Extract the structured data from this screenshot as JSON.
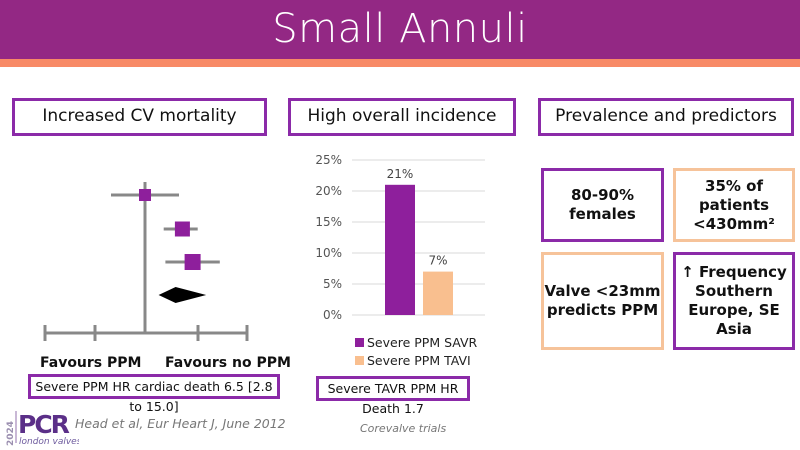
{
  "header": {
    "title": "Small Annuli"
  },
  "colors": {
    "brand_purple": "#932884",
    "accent_orange": "#F88A66",
    "box_purple": "#8B2AA8",
    "peach": "#F6C39A"
  },
  "sections": [
    {
      "title": "Increased CV mortality",
      "forest_plot": {
        "labels": {
          "left": "Favours PPM",
          "right": "Favours no PPM"
        },
        "studies": [
          {
            "estimate": 0,
            "ci": [
              -1.0,
              1.0
            ]
          },
          {
            "estimate": 1.1,
            "ci": [
              0.55,
              1.55
            ]
          },
          {
            "estimate": 1.4,
            "ci": [
              0.6,
              2.2
            ]
          }
        ],
        "pooled": {
          "estimate": 0.9,
          "ci": [
            0.4,
            1.8
          ]
        }
      },
      "note": "Severe PPM HR cardiac death 6.5 [2.8 to 15.0]",
      "reference": "Head et al, Eur Heart J, June 2012"
    },
    {
      "title": "High overall incidence",
      "note": "Severe TAVR PPM HR Death 1.7",
      "reference": "Corevalve trials"
    },
    {
      "title": "Prevalence and predictors",
      "cards": [
        {
          "lines": [
            "80-90%",
            "females"
          ],
          "style": "purple"
        },
        {
          "lines": [
            "35% of",
            "patients",
            "<430mm²"
          ],
          "style": "peach"
        },
        {
          "lines": [
            "Valve <23mm",
            "predicts PPM"
          ],
          "style": "peach"
        },
        {
          "lines": [
            "↑ Frequency",
            "Southern",
            "Europe, SE",
            "Asia"
          ],
          "style": "purple"
        }
      ]
    }
  ],
  "chart_data": {
    "type": "bar",
    "title": "",
    "xlabel": "",
    "ylabel": "",
    "categories": [
      ""
    ],
    "series": [
      {
        "name": "Severe PPM SAVR",
        "values": [
          21
        ],
        "label": "21%",
        "color": "#8E1F9C"
      },
      {
        "name": "Severe PPM TAVI",
        "values": [
          7
        ],
        "label": "7%",
        "color": "#F9BF8F"
      }
    ],
    "ylim": [
      0,
      25
    ],
    "yticks": [
      "0%",
      "5%",
      "10%",
      "15%",
      "20%",
      "25%"
    ],
    "grid": true,
    "legend": "bottom"
  },
  "logo": {
    "year": "2024",
    "brand": "PCR",
    "sub": "london valves"
  }
}
